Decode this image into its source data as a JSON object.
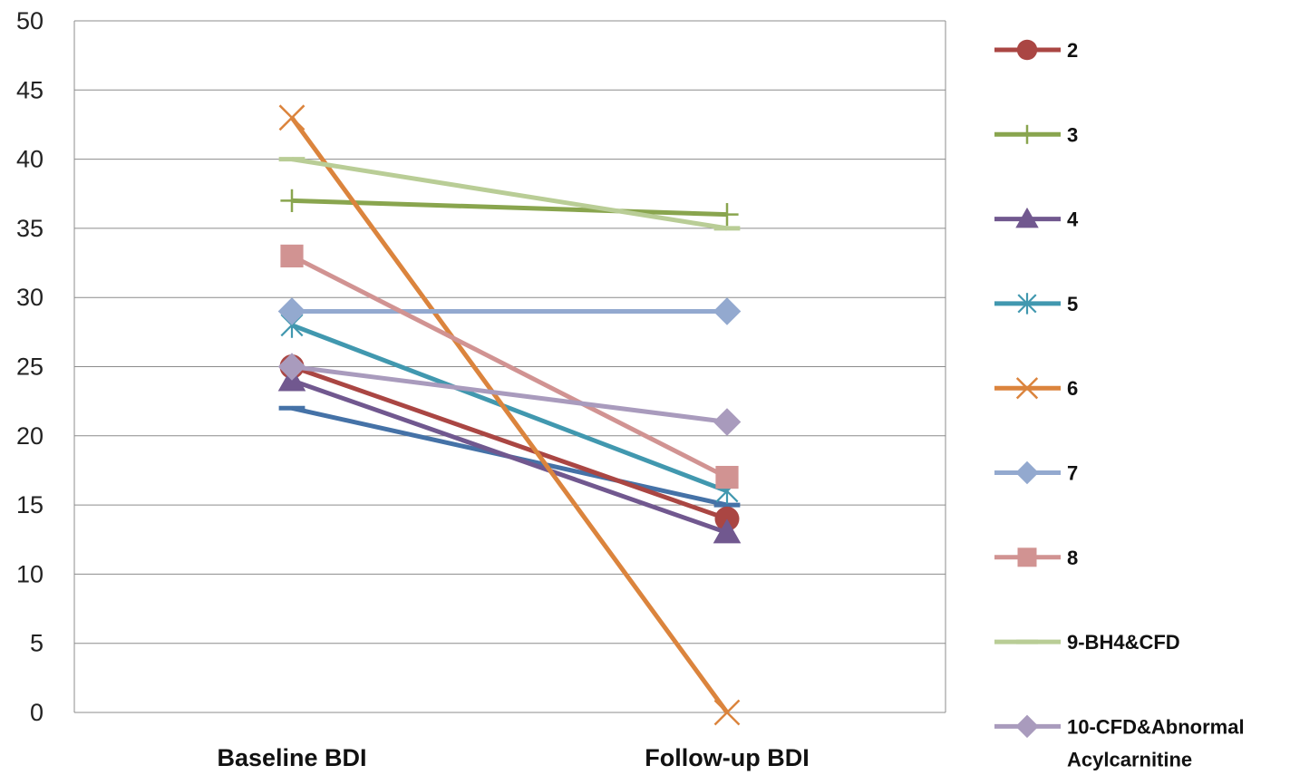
{
  "chart_data": {
    "type": "line",
    "categories": [
      "Baseline BDI",
      "Follow-up BDI"
    ],
    "ylim": [
      0,
      50
    ],
    "yticks": [
      0,
      5,
      10,
      15,
      20,
      25,
      30,
      35,
      40,
      45,
      50
    ],
    "grid": true,
    "legend_position": "right",
    "series": [
      {
        "name": "",
        "values": [
          22,
          15
        ],
        "color": "#4572a7",
        "marker": "dash"
      },
      {
        "name": "2",
        "values": [
          25,
          14
        ],
        "color": "#aa4643",
        "marker": "circle"
      },
      {
        "name": "3",
        "values": [
          37,
          36
        ],
        "color": "#89a54e",
        "marker": "plus"
      },
      {
        "name": "4",
        "values": [
          24,
          13
        ],
        "color": "#71588f",
        "marker": "triangle"
      },
      {
        "name": "5",
        "values": [
          28,
          16
        ],
        "color": "#4198af",
        "marker": "star"
      },
      {
        "name": "6",
        "values": [
          43,
          0
        ],
        "color": "#db843d",
        "marker": "x"
      },
      {
        "name": "7",
        "values": [
          29,
          29
        ],
        "color": "#93a9cf",
        "marker": "diamond"
      },
      {
        "name": "8",
        "values": [
          33,
          17
        ],
        "color": "#d19392",
        "marker": "square"
      },
      {
        "name": "9-BH4&CFD",
        "values": [
          40,
          35
        ],
        "color": "#b9cd96",
        "marker": "dash"
      },
      {
        "name": "10-CFD&Abnormal Acylcarnitine",
        "legend_lines": [
          "10-CFD&Abnormal",
          "Acylcarnitine"
        ],
        "values": [
          25,
          21
        ],
        "color": "#a99bbd",
        "marker": "diamond"
      }
    ]
  }
}
